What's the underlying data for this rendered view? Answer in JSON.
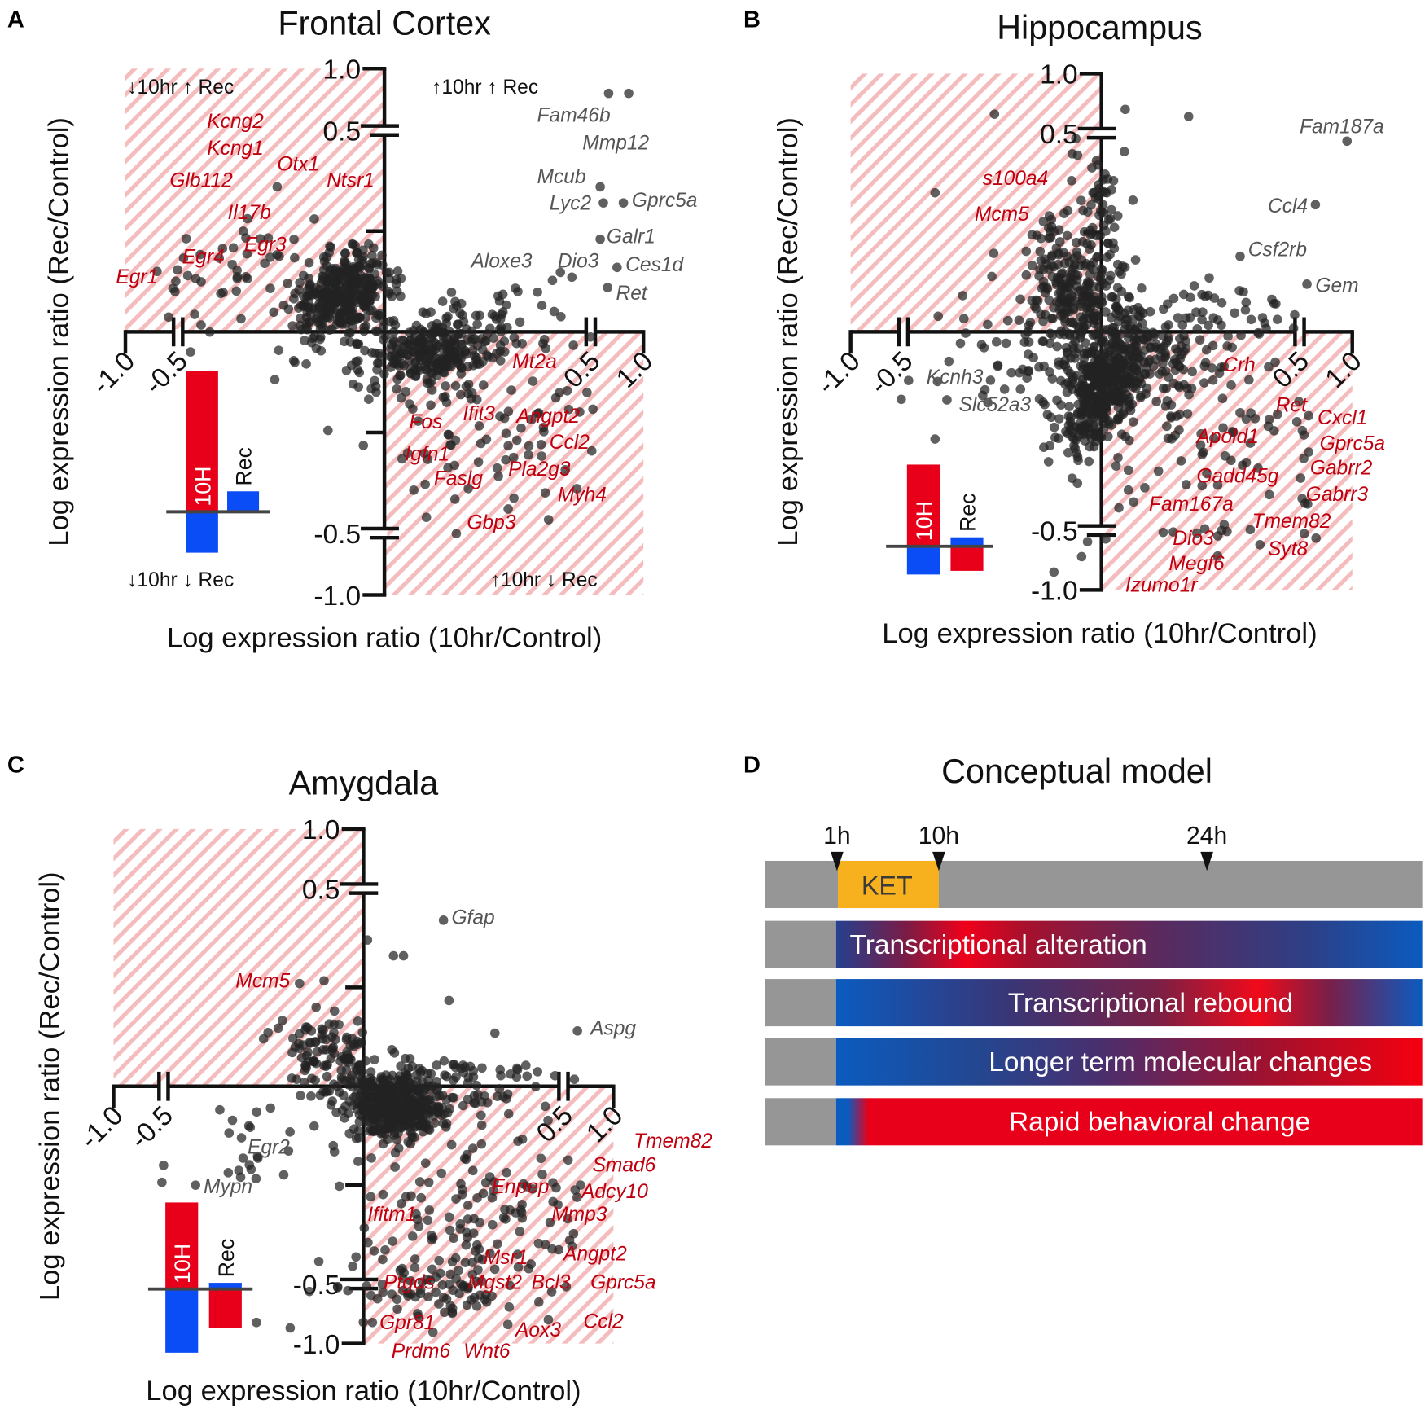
{
  "chart_data": [
    {
      "type": "scatter",
      "panel_letter": "A",
      "title": "Frontal Cortex",
      "xlabel": "Log expression ratio (10hr/Control)",
      "ylabel": "Log expression ratio (Rec/Control)",
      "xlim": [
        -1,
        1
      ],
      "ylim": [
        -1,
        1
      ],
      "axis_breaks": [
        -0.5,
        0.5
      ],
      "x_ticks": [
        {
          "value": -1.0,
          "label": "-1.0"
        },
        {
          "value": -0.5,
          "label": "-0.5"
        },
        {
          "value": 0.5,
          "label": "0.5"
        },
        {
          "value": 1.0,
          "label": "1.0"
        }
      ],
      "y_ticks": [
        {
          "value": 1.0,
          "label": "1.0"
        },
        {
          "value": 0.5,
          "label": "0.5"
        },
        {
          "value": -0.5,
          "label": "-0.5"
        },
        {
          "value": -1.0,
          "label": "-1.0"
        }
      ],
      "highlighted_quadrants": [
        "top-left",
        "bottom-right"
      ],
      "quadrant_labels": {
        "top_left": "↓10hr ↑ Rec",
        "top_right": "↑10hr ↑ Rec",
        "bottom_left": "↓10hr ↓ Rec",
        "bottom_right": "↑10hr ↓ Rec"
      },
      "point_clusters": [
        {
          "center": [
            -0.1,
            0.09
          ],
          "spread": [
            0.06,
            0.05
          ],
          "corr": 0.3,
          "count": 360
        },
        {
          "center": [
            0.11,
            -0.05
          ],
          "spread": [
            0.08,
            0.045
          ],
          "corr": 0.2,
          "count": 250
        },
        {
          "center": [
            0.25,
            -0.2
          ],
          "spread": [
            0.15,
            0.13
          ],
          "corr": 0,
          "count": 90
        },
        {
          "center": [
            -0.3,
            0.15
          ],
          "spread": [
            0.13,
            0.08
          ],
          "corr": 0,
          "count": 50
        },
        {
          "center": [
            0.3,
            0.05
          ],
          "spread": [
            0.12,
            0.05
          ],
          "corr": 0,
          "count": 40
        }
      ],
      "points": [
        [
          0.67,
          0.8
        ],
        [
          0.86,
          0.8
        ],
        [
          0.59,
          0.36
        ],
        [
          0.62,
          0.32
        ],
        [
          0.81,
          0.32
        ],
        [
          0.59,
          0.23
        ],
        [
          0.75,
          0.16
        ],
        [
          0.66,
          0.11
        ],
        [
          -0.26,
          0.36
        ],
        [
          -0.17,
          0.28
        ],
        [
          -0.29,
          0.17
        ],
        [
          -0.13,
          0.21
        ],
        [
          -0.53,
          0.1
        ],
        [
          -0.7,
          0.15
        ],
        [
          0.28,
          -0.21
        ],
        [
          0.38,
          -0.28
        ],
        [
          0.39,
          -0.4
        ],
        [
          0.3,
          -0.44
        ],
        [
          -0.47,
          -0.05
        ],
        [
          -0.02,
          -0.15
        ]
      ],
      "gene_labels": [
        {
          "name": "Fam46b",
          "x": 0.37,
          "y": 0.54,
          "color": "#555555"
        },
        {
          "name": "Mmp12",
          "x": 0.48,
          "y": 0.46,
          "color": "#555555"
        },
        {
          "name": "Mcub",
          "x": 0.37,
          "y": 0.36,
          "color": "#555555"
        },
        {
          "name": "Lyc2",
          "x": 0.4,
          "y": 0.31,
          "color": "#555555"
        },
        {
          "name": "Gprc5a",
          "x": 0.89,
          "y": 0.31,
          "color": "#555555"
        },
        {
          "name": "Galr1",
          "x": 0.65,
          "y": 0.22,
          "color": "#555555"
        },
        {
          "name": "Dio3",
          "x": 0.42,
          "y": 0.16,
          "color": "#555555"
        },
        {
          "name": "Ces1d",
          "x": 0.83,
          "y": 0.15,
          "color": "#555555"
        },
        {
          "name": "Ret",
          "x": 0.74,
          "y": 0.08,
          "color": "#555555"
        },
        {
          "name": "Aloxe3",
          "x": 0.21,
          "y": 0.16,
          "color": "#555555"
        },
        {
          "name": "Kcng2",
          "x": -0.43,
          "y": 0.52,
          "color": "#c0000f"
        },
        {
          "name": "Kcng1",
          "x": -0.43,
          "y": 0.44,
          "color": "#c0000f"
        },
        {
          "name": "Otx1",
          "x": -0.26,
          "y": 0.4,
          "color": "#c0000f"
        },
        {
          "name": "Ntsr1",
          "x": -0.14,
          "y": 0.36,
          "color": "#c0000f"
        },
        {
          "name": "Glb112",
          "x": -0.58,
          "y": 0.36,
          "color": "#c0000f"
        },
        {
          "name": "Il17b",
          "x": -0.38,
          "y": 0.28,
          "color": "#c0000f"
        },
        {
          "name": "Egr4",
          "x": -0.49,
          "y": 0.17,
          "color": "#c0000f"
        },
        {
          "name": "Egr3",
          "x": -0.34,
          "y": 0.2,
          "color": "#c0000f"
        },
        {
          "name": "Egr1",
          "x": -1.09,
          "y": 0.12,
          "color": "#c0000f"
        },
        {
          "name": "Mt2a",
          "x": 0.31,
          "y": -0.09,
          "color": "#c0000f"
        },
        {
          "name": "Fos",
          "x": 0.06,
          "y": -0.24,
          "color": "#c0000f"
        },
        {
          "name": "Ifit3",
          "x": 0.19,
          "y": -0.22,
          "color": "#c0000f"
        },
        {
          "name": "Angpt2",
          "x": 0.32,
          "y": -0.23,
          "color": "#c0000f"
        },
        {
          "name": "Igfn1",
          "x": 0.05,
          "y": -0.32,
          "color": "#c0000f"
        },
        {
          "name": "Ccl2",
          "x": 0.4,
          "y": -0.3,
          "color": "#c0000f"
        },
        {
          "name": "Faslg",
          "x": 0.12,
          "y": -0.38,
          "color": "#c0000f"
        },
        {
          "name": "Pla2g3",
          "x": 0.3,
          "y": -0.35,
          "color": "#c0000f"
        },
        {
          "name": "Myh4",
          "x": 0.42,
          "y": -0.41,
          "color": "#c0000f"
        },
        {
          "name": "Gbp3",
          "x": 0.2,
          "y": -0.49,
          "color": "#c0000f"
        }
      ],
      "inset": {
        "bars": [
          {
            "label": "10H",
            "up": 3.45,
            "up_color": "#e8001a",
            "down": 1.0,
            "down_color": "#0a4cf5"
          },
          {
            "label": "Rec",
            "up": 0.5,
            "up_color": "#0a4cf5",
            "down": 0,
            "down_color": "#e8001a"
          }
        ]
      }
    },
    {
      "type": "scatter",
      "panel_letter": "B",
      "title": "Hippocampus",
      "xlabel": "Log expression ratio (10hr/Control)",
      "ylabel": "Log expression ratio (Rec/Control)",
      "xlim": [
        -1,
        1
      ],
      "ylim": [
        -1,
        1
      ],
      "axis_breaks": [
        -0.5,
        0.5
      ],
      "x_ticks": [
        {
          "value": -1.0,
          "label": "-1.0"
        },
        {
          "value": -0.5,
          "label": "-0.5"
        },
        {
          "value": 0.5,
          "label": "0.5"
        },
        {
          "value": 1.0,
          "label": "1.0"
        }
      ],
      "y_ticks": [
        {
          "value": 1.0,
          "label": "1.0"
        },
        {
          "value": 0.5,
          "label": "0.5"
        },
        {
          "value": -0.5,
          "label": "-0.5"
        },
        {
          "value": -1.0,
          "label": "-1.0"
        }
      ],
      "highlighted_quadrants": [
        "top-left",
        "bottom-right"
      ],
      "point_clusters": [
        {
          "center": [
            0.0,
            -0.14
          ],
          "spread": [
            0.05,
            0.08
          ],
          "corr": 0.5,
          "count": 360
        },
        {
          "center": [
            0.1,
            -0.07
          ],
          "spread": [
            0.1,
            0.07
          ],
          "corr": 0,
          "count": 190
        },
        {
          "center": [
            -0.07,
            0.1
          ],
          "spread": [
            0.06,
            0.09
          ],
          "corr": -0.3,
          "count": 250
        },
        {
          "center": [
            0.0,
            0.3
          ],
          "spread": [
            0.03,
            0.08
          ],
          "corr": 0,
          "count": 50
        },
        {
          "center": [
            0.28,
            -0.28
          ],
          "spread": [
            0.15,
            0.17
          ],
          "corr": 0,
          "count": 90
        },
        {
          "center": [
            -0.22,
            -0.08
          ],
          "spread": [
            0.1,
            0.06
          ],
          "corr": 0,
          "count": 50
        },
        {
          "center": [
            0.3,
            0.04
          ],
          "spread": [
            0.12,
            0.05
          ],
          "corr": 0,
          "count": 40
        }
      ],
      "points": [
        [
          0.95,
          0.48
        ],
        [
          0.65,
          0.32
        ],
        [
          0.35,
          0.19
        ],
        [
          0.57,
          0.12
        ],
        [
          -0.27,
          0.66
        ],
        [
          0.06,
          0.7
        ],
        [
          0.22,
          0.64
        ],
        [
          -0.42,
          0.35
        ],
        [
          -0.52,
          -0.17
        ],
        [
          -0.42,
          -0.27
        ],
        [
          0.4,
          -0.62
        ],
        [
          -0.05,
          -0.72
        ],
        [
          -0.12,
          -0.85
        ]
      ],
      "gene_labels": [
        {
          "name": "Fam187a",
          "x": 0.5,
          "y": 0.5,
          "color": "#555555"
        },
        {
          "name": "Ccl4",
          "x": 0.42,
          "y": 0.3,
          "color": "#555555"
        },
        {
          "name": "Csf2rb",
          "x": 0.37,
          "y": 0.19,
          "color": "#555555"
        },
        {
          "name": "Gem",
          "x": 0.65,
          "y": 0.1,
          "color": "#555555"
        },
        {
          "name": "s100a4",
          "x": -0.3,
          "y": 0.37,
          "color": "#c0000f"
        },
        {
          "name": "Mcm5",
          "x": -0.32,
          "y": 0.28,
          "color": "#c0000f"
        },
        {
          "name": "Kcnh3",
          "x": -0.46,
          "y": -0.13,
          "color": "#555555"
        },
        {
          "name": "Slc52a3",
          "x": -0.36,
          "y": -0.2,
          "color": "#555555"
        },
        {
          "name": "Crh",
          "x": 0.33,
          "y": -0.1,
          "color": "#c0000f"
        },
        {
          "name": "Ret",
          "x": 0.44,
          "y": -0.19,
          "color": "#c0000f"
        },
        {
          "name": "Cxcl1",
          "x": 0.67,
          "y": -0.24,
          "color": "#c0000f"
        },
        {
          "name": "Gprc5a",
          "x": 0.69,
          "y": -0.3,
          "color": "#c0000f"
        },
        {
          "name": "Apold1",
          "x": 0.24,
          "y": -0.28,
          "color": "#c0000f"
        },
        {
          "name": "Gabrr2",
          "x": 0.6,
          "y": -0.35,
          "color": "#c0000f"
        },
        {
          "name": "Gadd45g",
          "x": 0.24,
          "y": -0.38,
          "color": "#c0000f"
        },
        {
          "name": "Gabrr3",
          "x": 0.56,
          "y": -0.41,
          "color": "#c0000f"
        },
        {
          "name": "Fam167a",
          "x": 0.12,
          "y": -0.45,
          "color": "#c0000f"
        },
        {
          "name": "Tmem82",
          "x": 0.38,
          "y": -0.47,
          "color": "#c0000f"
        },
        {
          "name": "Dio3",
          "x": 0.18,
          "y": -0.62,
          "color": "#c0000f"
        },
        {
          "name": "Syt8",
          "x": 0.42,
          "y": -0.71,
          "color": "#c0000f"
        },
        {
          "name": "Megf6",
          "x": 0.17,
          "y": -0.88,
          "color": "#c0000f"
        },
        {
          "name": "Izumo1r",
          "x": 0.06,
          "y": -1.0,
          "color": "#c0000f"
        }
      ],
      "inset": {
        "bars": [
          {
            "label": "10H",
            "up": 2.9,
            "up_color": "#e8001a",
            "down": 1.0,
            "down_color": "#0a4cf5"
          },
          {
            "label": "Rec",
            "up": 0.32,
            "up_color": "#0a4cf5",
            "down": 0.87,
            "down_color": "#e8001a"
          }
        ]
      }
    },
    {
      "type": "scatter",
      "panel_letter": "C",
      "title": "Amygdala",
      "xlabel": "Log expression ratio (10hr/Control)",
      "ylabel": "Log expression ratio (Rec/Control)",
      "xlim": [
        -1,
        1
      ],
      "ylim": [
        -1,
        1
      ],
      "axis_breaks": [
        -0.5,
        0.5
      ],
      "x_ticks": [
        {
          "value": -1.0,
          "label": "-1.0"
        },
        {
          "value": -0.5,
          "label": "-0.5"
        },
        {
          "value": 0.5,
          "label": "0.5"
        },
        {
          "value": 1.0,
          "label": "1.0"
        }
      ],
      "y_ticks": [
        {
          "value": 1.0,
          "label": "1.0"
        },
        {
          "value": 0.5,
          "label": "0.5"
        },
        {
          "value": -0.5,
          "label": "-0.5"
        },
        {
          "value": -1.0,
          "label": "-1.0"
        }
      ],
      "highlighted_quadrants": [
        "top-left",
        "bottom-right"
      ],
      "point_clusters": [
        {
          "center": [
            0.08,
            -0.05
          ],
          "spread": [
            0.06,
            0.045
          ],
          "corr": 0,
          "count": 420
        },
        {
          "center": [
            0.24,
            -0.4
          ],
          "spread": [
            0.15,
            0.22
          ],
          "corr": 0,
          "count": 220
        },
        {
          "center": [
            -0.08,
            0.07
          ],
          "spread": [
            0.07,
            0.06
          ],
          "corr": -0.3,
          "count": 120
        },
        {
          "center": [
            0.25,
            0.0
          ],
          "spread": [
            0.12,
            0.04
          ],
          "corr": 0,
          "count": 50
        },
        {
          "center": [
            -0.3,
            -0.15
          ],
          "spread": [
            0.08,
            0.06
          ],
          "corr": 0,
          "count": 20
        }
      ],
      "points": [
        [
          0.2,
          0.42
        ],
        [
          0.64,
          0.14
        ],
        [
          -0.16,
          0.26
        ],
        [
          -0.42,
          -0.25
        ],
        [
          -0.5,
          -0.2
        ],
        [
          0.075,
          0.33
        ],
        [
          0.1,
          0.33
        ],
        [
          0.01,
          0.37
        ],
        [
          -0.25,
          0.12
        ]
      ],
      "gene_labels": [
        {
          "name": "Gfap",
          "x": 0.22,
          "y": 0.41,
          "color": "#555555"
        },
        {
          "name": "Aspg",
          "x": 0.77,
          "y": 0.13,
          "color": "#555555"
        },
        {
          "name": "Mcm5",
          "x": -0.32,
          "y": 0.25,
          "color": "#c0000f"
        },
        {
          "name": "Egr2",
          "x": -0.29,
          "y": -0.17,
          "color": "#555555"
        },
        {
          "name": "Mypn",
          "x": -0.4,
          "y": -0.27,
          "color": "#555555"
        },
        {
          "name": "Tmem82",
          "x": 0.82,
          "y": -0.15,
          "color": "#c0000f"
        },
        {
          "name": "Smad6",
          "x": 0.79,
          "y": -0.2,
          "color": "#c0000f"
        },
        {
          "name": "Adcy10",
          "x": 0.68,
          "y": -0.26,
          "color": "#c0000f"
        },
        {
          "name": "Enpep",
          "x": 0.32,
          "y": -0.27,
          "color": "#c0000f"
        },
        {
          "name": "Mmp3",
          "x": 0.47,
          "y": -0.34,
          "color": "#c0000f"
        },
        {
          "name": "Ifitm1",
          "x": 0.01,
          "y": -0.34,
          "color": "#c0000f"
        },
        {
          "name": "Angpt2",
          "x": 0.5,
          "y": -0.44,
          "color": "#c0000f"
        },
        {
          "name": "Msr1",
          "x": 0.3,
          "y": -0.45,
          "color": "#c0000f"
        },
        {
          "name": "Gprc5a",
          "x": 0.77,
          "y": -0.54,
          "color": "#c0000f"
        },
        {
          "name": "Ptgds",
          "x": 0.05,
          "y": -0.54,
          "color": "#c0000f"
        },
        {
          "name": "Mgst2",
          "x": 0.26,
          "y": -0.54,
          "color": "#c0000f"
        },
        {
          "name": "Bcl3",
          "x": 0.42,
          "y": -0.54,
          "color": "#c0000f"
        },
        {
          "name": "Gpr81",
          "x": 0.04,
          "y": -0.88,
          "color": "#c0000f"
        },
        {
          "name": "Ccl2",
          "x": 0.7,
          "y": -0.87,
          "color": "#c0000f"
        },
        {
          "name": "Aox3",
          "x": 0.38,
          "y": -0.94,
          "color": "#c0000f"
        },
        {
          "name": "Prdm6",
          "x": 0.07,
          "y": -1.12,
          "color": "#c0000f"
        },
        {
          "name": "Wnt6",
          "x": 0.25,
          "y": -1.12,
          "color": "#c0000f"
        }
      ],
      "inset": {
        "bars": [
          {
            "label": "10H",
            "up": 1.4,
            "up_color": "#e8001a",
            "down": 1.03,
            "down_color": "#0a4cf5"
          },
          {
            "label": "Rec",
            "up": 0.1,
            "up_color": "#0a4cf5",
            "down": 0.63,
            "down_color": "#e8001a"
          }
        ]
      }
    }
  ],
  "conceptual_model": {
    "panel_letter": "D",
    "title": "Conceptual model",
    "timepoints": [
      {
        "label": "1h"
      },
      {
        "label": "10h"
      },
      {
        "label": "24h"
      }
    ],
    "treatment_label": "KET",
    "rows": [
      {
        "label": "Transcriptional alteration"
      },
      {
        "label": "Transcriptional rebound"
      },
      {
        "label": "Longer term molecular changes"
      },
      {
        "label": "Rapid behavioral change"
      }
    ],
    "colors": {
      "timeline": "#969696",
      "treatment": "#f7b01e",
      "up": "#e8001a",
      "down": "#0b5bbf"
    }
  }
}
